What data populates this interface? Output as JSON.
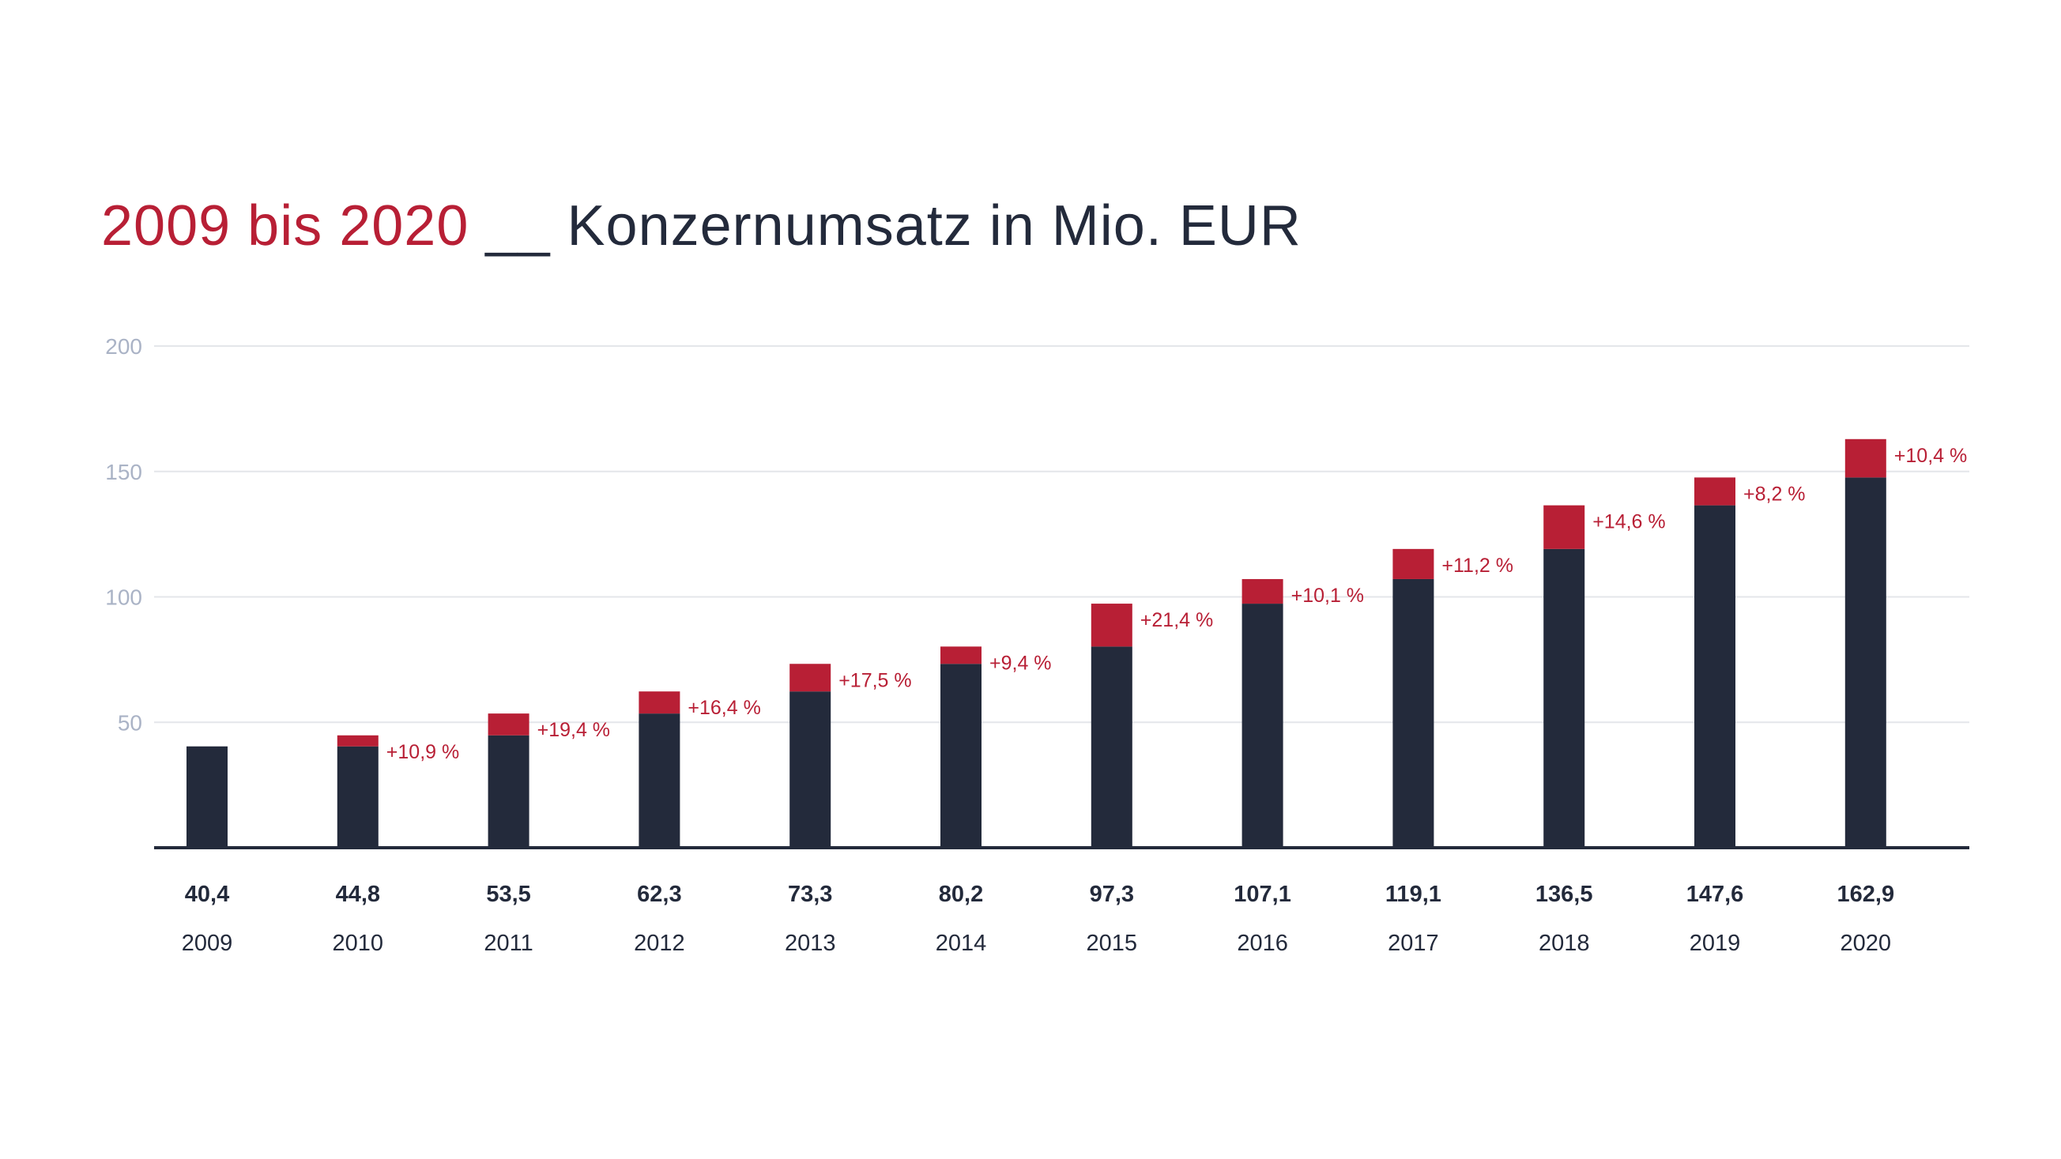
{
  "title": {
    "years": "2009 bis 2020",
    "separator": "__",
    "main": "Konzernumsatz in Mio. EUR"
  },
  "colors": {
    "bar_base": "#232a3b",
    "bar_increase": "#b81f35",
    "growth_label": "#b81f35",
    "tick_label": "#aab3c6",
    "gridline": "#e4e6ea",
    "axis": "#232a3b",
    "value_label": "#232a3b",
    "category_label": "#232a3b"
  },
  "chart_data": {
    "type": "bar",
    "title": "2009 bis 2020 __ Konzernumsatz in Mio. EUR",
    "xlabel": "",
    "ylabel": "",
    "ylim": [
      0,
      200
    ],
    "yticks": [
      50,
      100,
      150,
      200
    ],
    "ytick_labels": [
      "50",
      "100",
      "150",
      "200"
    ],
    "grid": true,
    "legend": "none",
    "categories": [
      "2009",
      "2010",
      "2011",
      "2012",
      "2013",
      "2014",
      "2015",
      "2016",
      "2017",
      "2018",
      "2019",
      "2020"
    ],
    "values": [
      40.4,
      44.8,
      53.5,
      62.3,
      73.3,
      80.2,
      97.3,
      107.1,
      119.1,
      136.5,
      147.6,
      162.9
    ],
    "value_labels": [
      "40,4",
      "44,8",
      "53,5",
      "62,3",
      "73,3",
      "80,2",
      "97,3",
      "107,1",
      "119,1",
      "136,5",
      "147,6",
      "162,9"
    ],
    "growth_labels": [
      "",
      "+10,9 %",
      "+19,4 %",
      "+16,4 %",
      "+17,5 %",
      "+9,4 %",
      "+21,4 %",
      "+10,1 %",
      "+11,2 %",
      "+14,6 %",
      "+8,2 %",
      "+10,4 %"
    ]
  }
}
